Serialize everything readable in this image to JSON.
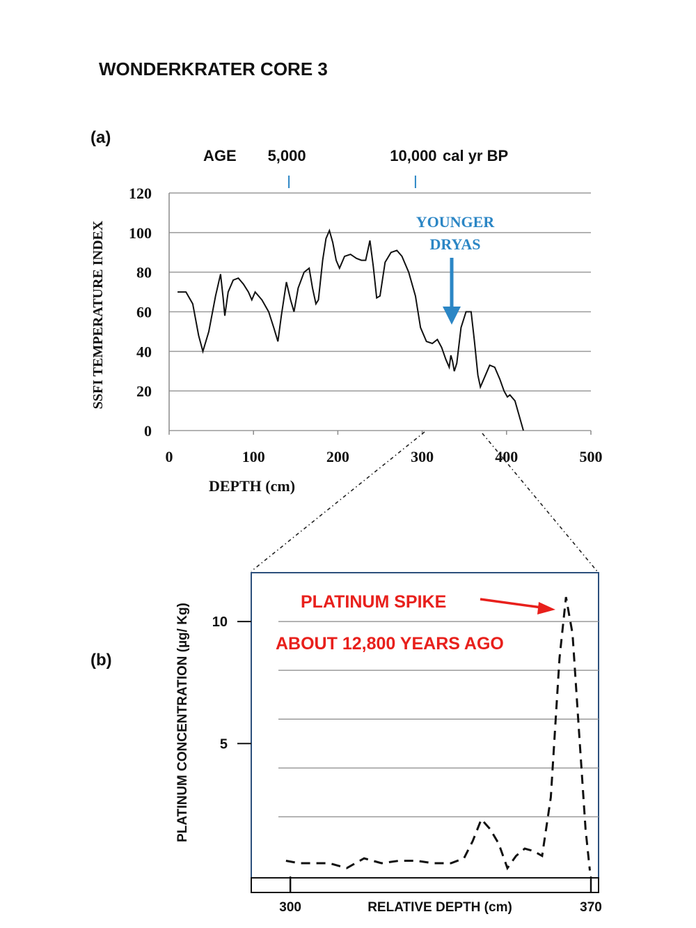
{
  "title": "WONDERKRATER CORE 3",
  "colors": {
    "line": "#111111",
    "grid": "#9a9a9a",
    "annotation_blue": "#2b86c5",
    "annotation_red": "#e8201c",
    "frame_blue": "#2c4f7c"
  },
  "chart_data": [
    {
      "panel_label": "(a)",
      "type": "line",
      "xlabel": "DEPTH (cm)",
      "ylabel": "SSFI TEMPERATURE INDEX",
      "xlim": [
        0,
        500
      ],
      "ylim": [
        0,
        120
      ],
      "x_ticks": [
        "0",
        "100",
        "200",
        "300",
        "400",
        "500"
      ],
      "y_ticks": [
        "0",
        "20",
        "40",
        "60",
        "80",
        "100",
        "120"
      ],
      "grid": true,
      "top_axis": {
        "label": "AGE",
        "unit": "cal yr BP",
        "ticks": [
          {
            "label": "5,000",
            "depth": 142
          },
          {
            "label": "10,000",
            "depth": 292
          }
        ]
      },
      "annotation": {
        "line1": "YOUNGER",
        "line2": "DRYAS",
        "points_to": {
          "x": 335,
          "y": 55
        }
      },
      "series": [
        {
          "points": [
            [
              10,
              70
            ],
            [
              20,
              70
            ],
            [
              28,
              64
            ],
            [
              35,
              48
            ],
            [
              40,
              40
            ],
            [
              47,
              50
            ],
            [
              55,
              68
            ],
            [
              61,
              79
            ],
            [
              64,
              67
            ],
            [
              66,
              58
            ],
            [
              70,
              70
            ],
            [
              76,
              76
            ],
            [
              82,
              77
            ],
            [
              88,
              74
            ],
            [
              94,
              70
            ],
            [
              98,
              66
            ],
            [
              102,
              70
            ],
            [
              110,
              66
            ],
            [
              118,
              60
            ],
            [
              124,
              52
            ],
            [
              129,
              45
            ],
            [
              133,
              58
            ],
            [
              139,
              75
            ],
            [
              144,
              66
            ],
            [
              148,
              60
            ],
            [
              153,
              72
            ],
            [
              160,
              80
            ],
            [
              166,
              82
            ],
            [
              170,
              72
            ],
            [
              174,
              64
            ],
            [
              177,
              66
            ],
            [
              182,
              86
            ],
            [
              186,
              97
            ],
            [
              190,
              101
            ],
            [
              194,
              95
            ],
            [
              198,
              86
            ],
            [
              202,
              82
            ],
            [
              208,
              88
            ],
            [
              215,
              89
            ],
            [
              222,
              87
            ],
            [
              228,
              86
            ],
            [
              233,
              86
            ],
            [
              238,
              96
            ],
            [
              242,
              83
            ],
            [
              246,
              67
            ],
            [
              250,
              68
            ],
            [
              256,
              85
            ],
            [
              263,
              90
            ],
            [
              270,
              91
            ],
            [
              276,
              88
            ],
            [
              284,
              80
            ],
            [
              292,
              68
            ],
            [
              298,
              52
            ],
            [
              305,
              45
            ],
            [
              312,
              44
            ],
            [
              318,
              46
            ],
            [
              323,
              42
            ],
            [
              328,
              36
            ],
            [
              332,
              32
            ],
            [
              334,
              38
            ],
            [
              336,
              35
            ],
            [
              338,
              30
            ],
            [
              341,
              34
            ],
            [
              346,
              52
            ],
            [
              352,
              60
            ],
            [
              358,
              60
            ],
            [
              362,
              45
            ],
            [
              366,
              28
            ],
            [
              369,
              22
            ],
            [
              374,
              27
            ],
            [
              380,
              33
            ],
            [
              386,
              32
            ],
            [
              392,
              26
            ],
            [
              397,
              20
            ],
            [
              401,
              17
            ],
            [
              404,
              18
            ],
            [
              410,
              15
            ],
            [
              420,
              0
            ]
          ]
        }
      ]
    },
    {
      "panel_label": "(b)",
      "type": "line",
      "line_style": "dashed",
      "xlabel": "RELATIVE DEPTH (cm)",
      "ylabel": "PLATINUM CONCENTRATION (µg/ Kg)",
      "xlim": [
        291,
        371
      ],
      "ylim": [
        -0.5,
        12
      ],
      "x_ticks": [
        "300",
        "370"
      ],
      "y_ticks": [
        "5",
        "10"
      ],
      "gridlines_y": [
        2,
        4,
        6,
        8,
        10
      ],
      "grid": true,
      "annotation": {
        "line1": "PLATINUM SPIKE",
        "line2": "ABOUT 12,800 YEARS AGO"
      },
      "series": [
        {
          "points": [
            [
              299,
              0.2
            ],
            [
              302,
              0.1
            ],
            [
              306,
              0.1
            ],
            [
              309,
              0.1
            ],
            [
              313,
              -0.1
            ],
            [
              317,
              0.3
            ],
            [
              321,
              0.1
            ],
            [
              325,
              0.2
            ],
            [
              329,
              0.2
            ],
            [
              333,
              0.1
            ],
            [
              337,
              0.1
            ],
            [
              340,
              0.3
            ],
            [
              342,
              1.0
            ],
            [
              344,
              1.9
            ],
            [
              346,
              1.5
            ],
            [
              348,
              0.9
            ],
            [
              350,
              -0.1
            ],
            [
              352,
              0.4
            ],
            [
              354,
              0.7
            ],
            [
              356,
              0.6
            ],
            [
              358,
              0.4
            ],
            [
              360,
              2.8
            ],
            [
              362,
              8.5
            ],
            [
              363.5,
              11.0
            ],
            [
              365,
              9.5
            ],
            [
              366.5,
              5.5
            ],
            [
              368,
              1.5
            ],
            [
              369,
              -0.2
            ]
          ]
        }
      ]
    }
  ]
}
